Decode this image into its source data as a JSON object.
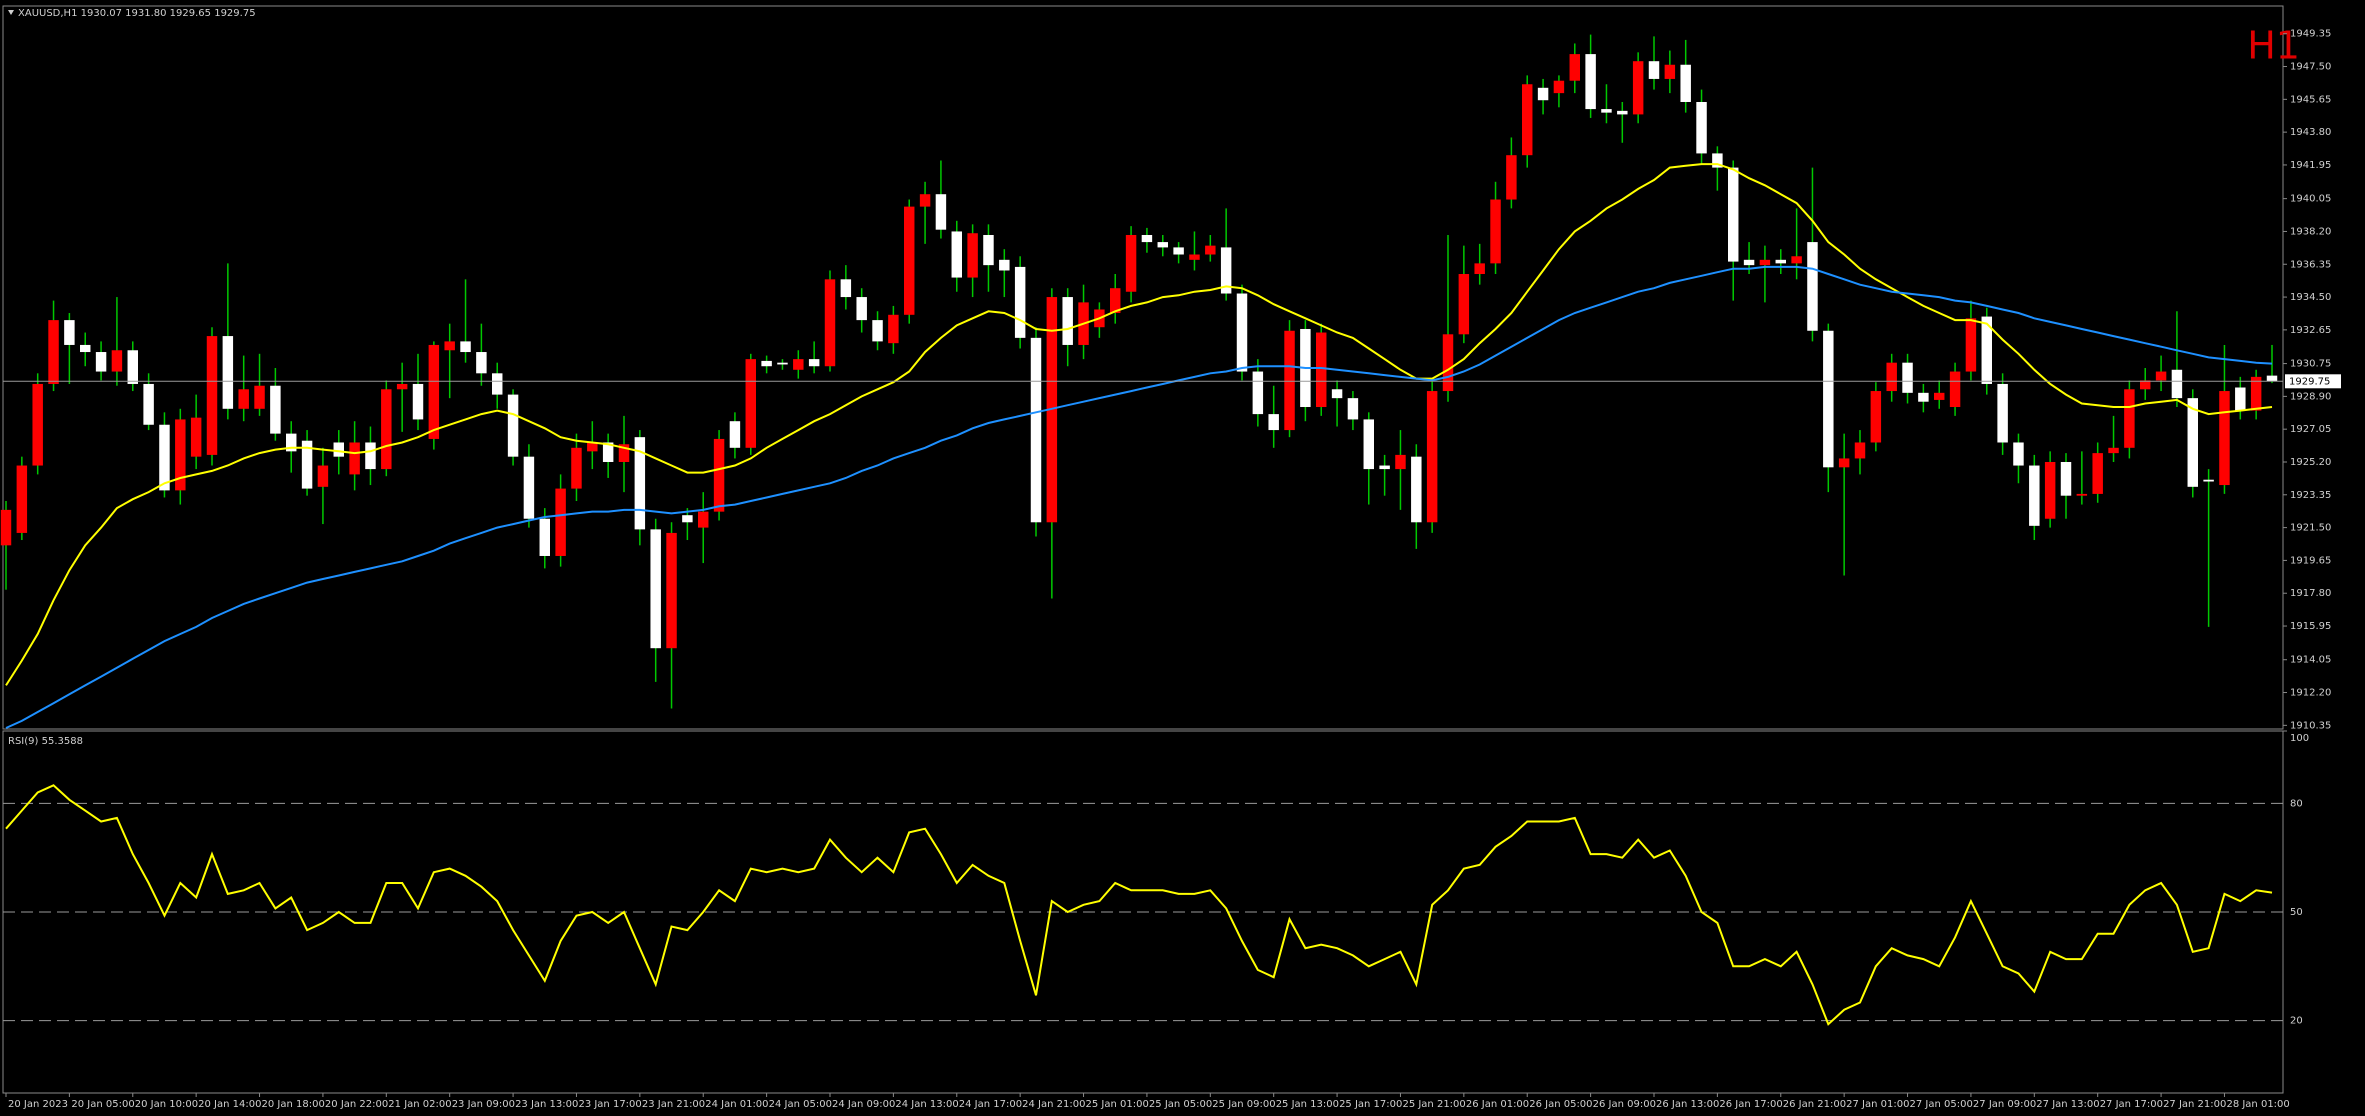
{
  "chart_data": [
    {
      "type": "candlestick",
      "title": "XAUUSD,H1  1930.07 1931.80 1929.65 1929.75",
      "corner_label": "H1",
      "xtick_labels": [
        "20 Jan 2023",
        "20 Jan 05:00",
        "20 Jan 10:00",
        "20 Jan 14:00",
        "20 Jan 18:00",
        "20 Jan 22:00",
        "21 Jan 02:00",
        "23 Jan 09:00",
        "23 Jan 13:00",
        "23 Jan 17:00",
        "23 Jan 21:00",
        "24 Jan 01:00",
        "24 Jan 05:00",
        "24 Jan 09:00",
        "24 Jan 13:00",
        "24 Jan 17:00",
        "24 Jan 21:00",
        "25 Jan 01:00",
        "25 Jan 05:00",
        "25 Jan 09:00",
        "25 Jan 13:00",
        "25 Jan 17:00",
        "25 Jan 21:00",
        "26 Jan 01:00",
        "26 Jan 05:00",
        "26 Jan 09:00",
        "26 Jan 13:00",
        "26 Jan 17:00",
        "26 Jan 21:00",
        "27 Jan 01:00",
        "27 Jan 05:00",
        "27 Jan 09:00",
        "27 Jan 13:00",
        "27 Jan 17:00",
        "27 Jan 21:00",
        "28 Jan 01:00"
      ],
      "open": [
        1920.5,
        1921.2,
        1925.0,
        1929.6,
        1933.2,
        1931.8,
        1931.4,
        1930.3,
        1931.5,
        1929.6,
        1927.3,
        1923.6,
        1925.5,
        1925.6,
        1932.3,
        1928.2,
        1928.2,
        1929.5,
        1926.8,
        1926.4,
        1923.8,
        1926.3,
        1924.5,
        1926.3,
        1924.8,
        1929.3,
        1929.6,
        1926.5,
        1931.5,
        1932.0,
        1931.4,
        1930.2,
        1929.0,
        1925.5,
        1922.0,
        1919.9,
        1923.7,
        1925.8,
        1926.3,
        1925.2,
        1926.6,
        1921.4,
        1914.7,
        1922.2,
        1921.5,
        1922.4,
        1927.5,
        1926.0,
        1930.9,
        1930.8,
        1930.4,
        1931.0,
        1930.6,
        1935.5,
        1934.5,
        1933.2,
        1931.9,
        1933.5,
        1939.6,
        1940.3,
        1938.2,
        1935.6,
        1938.0,
        1936.6,
        1936.2,
        1932.2,
        1921.8,
        1934.5,
        1931.8,
        1932.8,
        1933.6,
        1934.8,
        1938.0,
        1937.6,
        1937.3,
        1936.6,
        1936.9,
        1937.3,
        1934.7,
        1930.3,
        1927.9,
        1927.0,
        1932.7,
        1928.3,
        1929.3,
        1928.8,
        1927.6,
        1925.0,
        1924.8,
        1925.5,
        1921.8,
        1929.2,
        1932.4,
        1935.8,
        1936.4,
        1940.0,
        1942.5,
        1946.3,
        1946.0,
        1946.7,
        1948.2,
        1945.1,
        1945.0,
        1944.8,
        1947.8,
        1946.8,
        1947.6,
        1945.5,
        1942.6,
        1941.8,
        1936.6,
        1936.3,
        1936.6,
        1936.4,
        1937.6,
        1932.6,
        1924.9,
        1925.4,
        1926.3,
        1929.2,
        1930.8,
        1929.1,
        1928.7,
        1928.3,
        1930.3,
        1933.4,
        1929.6,
        1926.3,
        1925.0,
        1922.0,
        1925.2,
        1923.3,
        1923.4,
        1925.7,
        1926.0,
        1929.3,
        1929.8,
        1930.4,
        1928.8,
        1924.2,
        1923.9,
        1929.4,
        1928.1,
        1930.07
      ],
      "high": [
        1923.0,
        1925.5,
        1930.2,
        1934.3,
        1933.6,
        1932.5,
        1932.0,
        1934.5,
        1932.0,
        1930.2,
        1928.0,
        1928.2,
        1929.0,
        1932.8,
        1936.4,
        1931.2,
        1931.3,
        1930.5,
        1927.5,
        1927.0,
        1926.0,
        1927.0,
        1927.5,
        1927.2,
        1929.8,
        1930.8,
        1931.3,
        1932.0,
        1933.0,
        1935.5,
        1933.0,
        1930.8,
        1929.3,
        1926.2,
        1922.6,
        1924.5,
        1926.8,
        1927.5,
        1926.8,
        1927.8,
        1927.0,
        1922.0,
        1921.8,
        1922.6,
        1923.5,
        1927.0,
        1928.0,
        1931.3,
        1931.2,
        1931.0,
        1931.5,
        1932.0,
        1936.0,
        1936.3,
        1935.0,
        1933.7,
        1934.0,
        1940.0,
        1941.0,
        1942.2,
        1938.8,
        1938.6,
        1938.6,
        1937.2,
        1936.8,
        1932.8,
        1935.0,
        1935.0,
        1935.2,
        1934.2,
        1935.8,
        1938.5,
        1938.4,
        1938.0,
        1937.6,
        1938.2,
        1938.0,
        1939.5,
        1935.2,
        1931.0,
        1929.5,
        1933.2,
        1933.2,
        1933.0,
        1929.8,
        1929.2,
        1928.0,
        1925.6,
        1927.0,
        1926.2,
        1929.8,
        1938.0,
        1937.4,
        1937.5,
        1941.0,
        1943.5,
        1947.0,
        1946.8,
        1947.0,
        1948.8,
        1949.3,
        1946.5,
        1945.5,
        1948.3,
        1949.2,
        1948.4,
        1949.0,
        1946.2,
        1943.0,
        1942.2,
        1937.6,
        1937.4,
        1937.2,
        1939.5,
        1941.8,
        1933.0,
        1926.8,
        1927.0,
        1929.7,
        1931.3,
        1931.3,
        1929.6,
        1929.8,
        1930.8,
        1934.3,
        1933.9,
        1930.2,
        1926.8,
        1925.6,
        1925.8,
        1925.7,
        1925.8,
        1926.3,
        1927.8,
        1929.8,
        1930.5,
        1931.2,
        1933.7,
        1929.3,
        1924.8,
        1931.8,
        1930.0,
        1930.4,
        1931.8
      ],
      "low": [
        1918.0,
        1920.8,
        1924.5,
        1929.2,
        1929.6,
        1930.6,
        1929.8,
        1929.5,
        1929.2,
        1927.0,
        1923.2,
        1922.8,
        1924.8,
        1925.0,
        1927.6,
        1927.5,
        1927.8,
        1926.4,
        1924.6,
        1923.3,
        1921.7,
        1924.5,
        1923.6,
        1923.9,
        1924.4,
        1926.9,
        1927.0,
        1925.9,
        1928.8,
        1930.8,
        1929.5,
        1928.2,
        1925.0,
        1921.5,
        1919.2,
        1919.3,
        1923.0,
        1924.8,
        1924.3,
        1923.5,
        1920.5,
        1912.8,
        1911.3,
        1920.8,
        1919.5,
        1921.9,
        1925.4,
        1925.6,
        1930.2,
        1930.4,
        1929.9,
        1930.2,
        1930.3,
        1933.8,
        1932.5,
        1931.5,
        1931.3,
        1933.0,
        1937.5,
        1937.8,
        1934.8,
        1934.5,
        1934.8,
        1934.5,
        1931.6,
        1921.0,
        1917.5,
        1930.6,
        1931.0,
        1932.2,
        1933.0,
        1934.2,
        1937.0,
        1936.8,
        1936.4,
        1936.0,
        1936.5,
        1934.3,
        1929.8,
        1927.2,
        1926.0,
        1926.6,
        1927.5,
        1927.8,
        1927.2,
        1927.0,
        1922.8,
        1923.3,
        1922.5,
        1920.3,
        1921.2,
        1928.6,
        1931.9,
        1935.2,
        1935.8,
        1939.5,
        1941.8,
        1944.8,
        1945.2,
        1946.0,
        1944.6,
        1944.3,
        1943.2,
        1944.3,
        1946.2,
        1946.0,
        1944.9,
        1942.0,
        1940.5,
        1934.3,
        1935.8,
        1934.2,
        1935.8,
        1935.5,
        1932.0,
        1923.5,
        1918.8,
        1924.5,
        1925.8,
        1928.6,
        1928.5,
        1928.0,
        1928.2,
        1927.8,
        1929.8,
        1929.0,
        1925.6,
        1924.0,
        1920.8,
        1921.5,
        1922.0,
        1922.8,
        1922.9,
        1925.2,
        1925.4,
        1928.7,
        1929.2,
        1928.3,
        1923.2,
        1915.9,
        1923.4,
        1927.6,
        1927.6,
        1929.65
      ],
      "close": [
        1922.5,
        1925.0,
        1929.6,
        1933.2,
        1931.8,
        1931.4,
        1930.3,
        1931.5,
        1929.6,
        1927.3,
        1923.6,
        1927.6,
        1927.7,
        1932.3,
        1928.2,
        1929.3,
        1929.5,
        1926.8,
        1925.8,
        1923.7,
        1925.0,
        1925.5,
        1926.3,
        1924.8,
        1929.3,
        1929.6,
        1927.6,
        1931.8,
        1932.0,
        1931.4,
        1930.2,
        1929.0,
        1925.5,
        1922.0,
        1919.9,
        1923.7,
        1926.0,
        1926.3,
        1925.2,
        1926.2,
        1921.4,
        1914.7,
        1921.2,
        1921.8,
        1922.4,
        1926.5,
        1926.0,
        1931.0,
        1930.6,
        1930.7,
        1931.0,
        1930.6,
        1935.5,
        1934.5,
        1933.2,
        1932.0,
        1933.5,
        1939.6,
        1940.3,
        1938.3,
        1935.6,
        1938.1,
        1936.3,
        1936.0,
        1932.2,
        1921.8,
        1934.5,
        1931.8,
        1934.2,
        1933.8,
        1935.0,
        1938.0,
        1937.6,
        1937.3,
        1936.9,
        1936.9,
        1937.4,
        1934.7,
        1930.3,
        1927.9,
        1927.0,
        1932.6,
        1928.3,
        1932.5,
        1928.8,
        1927.6,
        1924.8,
        1924.8,
        1925.6,
        1921.8,
        1929.2,
        1932.4,
        1935.8,
        1936.4,
        1940.0,
        1942.5,
        1946.5,
        1945.6,
        1946.7,
        1948.2,
        1945.1,
        1944.9,
        1944.8,
        1947.8,
        1946.8,
        1947.6,
        1945.5,
        1942.6,
        1941.8,
        1936.5,
        1936.3,
        1936.6,
        1936.4,
        1936.8,
        1932.6,
        1924.9,
        1925.4,
        1926.3,
        1929.2,
        1930.8,
        1929.1,
        1928.6,
        1929.1,
        1930.3,
        1933.3,
        1929.6,
        1926.3,
        1925.0,
        1921.6,
        1925.2,
        1923.3,
        1923.4,
        1925.7,
        1926.0,
        1929.3,
        1929.8,
        1930.3,
        1928.8,
        1923.8,
        1924.1,
        1929.2,
        1928.1,
        1930.0,
        1929.75
      ],
      "bull_color": "#ff0000",
      "bear_color": "#ffffff",
      "wick_color": "#00c800",
      "overlays": [
        {
          "color": "#ffff00",
          "values": [
            1912.6,
            1914.0,
            1915.5,
            1917.4,
            1919.1,
            1920.5,
            1921.5,
            1922.6,
            1923.1,
            1923.5,
            1924.0,
            1924.3,
            1924.5,
            1924.7,
            1925.0,
            1925.4,
            1925.7,
            1925.9,
            1926.0,
            1926.0,
            1925.9,
            1925.8,
            1925.7,
            1925.8,
            1926.1,
            1926.3,
            1926.6,
            1927.0,
            1927.3,
            1927.6,
            1927.9,
            1928.1,
            1927.9,
            1927.5,
            1927.1,
            1926.6,
            1926.4,
            1926.3,
            1926.2,
            1926.0,
            1925.8,
            1925.4,
            1925.0,
            1924.6,
            1924.6,
            1924.8,
            1925.0,
            1925.4,
            1926.0,
            1926.5,
            1927.0,
            1927.5,
            1927.9,
            1928.4,
            1928.9,
            1929.3,
            1929.7,
            1930.3,
            1931.4,
            1932.2,
            1932.9,
            1933.3,
            1933.7,
            1933.6,
            1933.2,
            1932.7,
            1932.6,
            1932.7,
            1933.0,
            1933.3,
            1933.7,
            1934.0,
            1934.2,
            1934.5,
            1934.6,
            1934.8,
            1934.9,
            1935.1,
            1935.0,
            1934.6,
            1934.1,
            1933.7,
            1933.3,
            1932.9,
            1932.5,
            1932.2,
            1931.6,
            1931.0,
            1930.4,
            1929.9,
            1929.9,
            1930.4,
            1931.0,
            1931.9,
            1932.7,
            1933.6,
            1934.8,
            1936.0,
            1937.2,
            1938.2,
            1938.8,
            1939.5,
            1940.0,
            1940.6,
            1941.1,
            1941.8,
            1941.9,
            1942.0,
            1942.0,
            1941.7,
            1941.2,
            1940.8,
            1940.3,
            1939.8,
            1938.8,
            1937.6,
            1936.9,
            1936.1,
            1935.5,
            1935.0,
            1934.5,
            1934.0,
            1933.6,
            1933.2,
            1933.2,
            1933.0,
            1932.1,
            1931.3,
            1930.4,
            1929.6,
            1929.0,
            1928.5,
            1928.4,
            1928.3,
            1928.3,
            1928.5,
            1928.6,
            1928.7,
            1928.2,
            1927.9,
            1928.0,
            1928.1,
            1928.2,
            1928.3
          ]
        },
        {
          "color": "#1e90ff",
          "values": [
            1910.2,
            1910.6,
            1911.1,
            1911.6,
            1912.1,
            1912.6,
            1913.1,
            1913.6,
            1914.1,
            1914.6,
            1915.1,
            1915.5,
            1915.9,
            1916.4,
            1916.8,
            1917.2,
            1917.5,
            1917.8,
            1918.1,
            1918.4,
            1918.6,
            1918.8,
            1919.0,
            1919.2,
            1919.4,
            1919.6,
            1919.9,
            1920.2,
            1920.6,
            1920.9,
            1921.2,
            1921.5,
            1921.7,
            1921.9,
            1922.1,
            1922.2,
            1922.3,
            1922.4,
            1922.4,
            1922.5,
            1922.5,
            1922.4,
            1922.3,
            1922.4,
            1922.5,
            1922.7,
            1922.8,
            1923.0,
            1923.2,
            1923.4,
            1923.6,
            1923.8,
            1924.0,
            1924.3,
            1924.7,
            1925.0,
            1925.4,
            1925.7,
            1926.0,
            1926.4,
            1926.7,
            1927.1,
            1927.4,
            1927.6,
            1927.8,
            1928.0,
            1928.2,
            1928.4,
            1928.6,
            1928.8,
            1929.0,
            1929.2,
            1929.4,
            1929.6,
            1929.8,
            1930.0,
            1930.2,
            1930.3,
            1930.5,
            1930.6,
            1930.6,
            1930.6,
            1930.5,
            1930.5,
            1930.4,
            1930.3,
            1930.2,
            1930.1,
            1930.0,
            1929.9,
            1929.8,
            1930.0,
            1930.3,
            1930.7,
            1931.2,
            1931.7,
            1932.2,
            1932.7,
            1933.2,
            1933.6,
            1933.9,
            1934.2,
            1934.5,
            1934.8,
            1935.0,
            1935.3,
            1935.5,
            1935.7,
            1935.9,
            1936.1,
            1936.1,
            1936.2,
            1936.2,
            1936.2,
            1936.1,
            1935.8,
            1935.5,
            1935.2,
            1935.0,
            1934.8,
            1934.7,
            1934.6,
            1934.5,
            1934.3,
            1934.2,
            1934.0,
            1933.8,
            1933.6,
            1933.3,
            1933.1,
            1932.9,
            1932.7,
            1932.5,
            1932.3,
            1932.1,
            1931.9,
            1931.7,
            1931.5,
            1931.3,
            1931.1,
            1931.0,
            1930.9,
            1930.8,
            1930.75
          ]
        }
      ],
      "last_price": {
        "value": 1929.75,
        "label": "1929.75"
      },
      "ylim": [
        1910.2,
        1950.8
      ],
      "yticks": [
        1949.35,
        {
          "value": 1947.5,
          "label": "1947.50"
        },
        1945.65,
        {
          "value": 1943.8,
          "label": "1943.80"
        },
        1941.95,
        1940.05,
        {
          "value": 1938.2,
          "label": "1938.20"
        },
        1936.35,
        {
          "value": 1934.5,
          "label": "1934.50"
        },
        1932.65,
        1930.75,
        {
          "value": 1928.9,
          "label": "1928.90"
        },
        1927.05,
        {
          "value": 1925.2,
          "label": "1925.20"
        },
        1923.35,
        {
          "value": 1921.5,
          "label": "1921.50"
        },
        1919.65,
        {
          "value": 1917.8,
          "label": "1917.80"
        },
        1915.95,
        1914.05,
        {
          "value": 1912.2,
          "label": "1912.20"
        },
        1910.35
      ]
    },
    {
      "type": "line",
      "title": "RSI(9) 55.3588",
      "color": "#ffff00",
      "values": [
        73,
        78,
        83,
        85,
        81,
        78,
        75,
        76,
        66,
        58,
        49,
        58,
        54,
        66,
        55,
        56,
        58,
        51,
        54,
        45,
        47,
        50,
        47,
        47,
        58,
        58,
        51,
        61,
        62,
        60,
        57,
        53,
        45,
        38,
        31,
        42,
        49,
        50,
        47,
        50,
        40,
        30,
        46,
        45,
        50,
        56,
        53,
        62,
        61,
        62,
        61,
        62,
        70,
        65,
        61,
        65,
        61,
        72,
        73,
        66,
        58,
        63,
        60,
        58,
        42,
        27,
        53,
        50,
        52,
        53,
        58,
        56,
        56,
        56,
        55,
        55,
        56,
        51,
        42,
        34,
        32,
        48,
        40,
        41,
        40,
        38,
        35,
        37,
        39,
        30,
        52,
        56,
        62,
        63,
        68,
        71,
        75,
        75,
        75,
        76,
        66,
        66,
        65,
        70,
        65,
        67,
        60,
        50,
        47,
        35,
        35,
        37,
        35,
        39,
        30,
        19,
        23,
        25,
        35,
        40,
        38,
        37,
        35,
        43,
        53,
        44,
        35,
        33,
        28,
        39,
        37,
        37,
        44,
        44,
        52,
        56,
        58,
        52,
        39,
        40,
        55,
        53,
        56,
        55.3588
      ],
      "ylim": [
        0,
        100
      ],
      "yticks": [
        20,
        50,
        80,
        100
      ],
      "grid": true
    }
  ]
}
